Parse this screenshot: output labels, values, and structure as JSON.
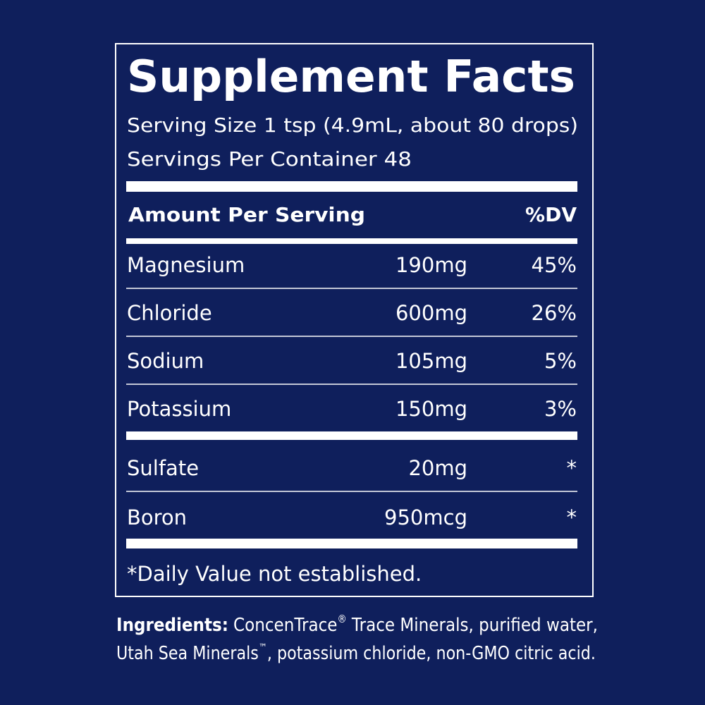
{
  "panel": {
    "title": "Supplement Facts",
    "serving_size": "Serving Size 1 tsp (4.9mL, about 80 drops)",
    "servings_per_container": "Servings Per Container 48",
    "header": {
      "amount": "Amount Per Serving",
      "dv": "%DV"
    },
    "rows": [
      [
        "Magnesium",
        "190mg",
        "45%"
      ],
      [
        "Chloride",
        "600mg",
        "26%"
      ],
      [
        "Sodium",
        "105mg",
        "5%"
      ],
      [
        "Potassium",
        "150mg",
        "3%"
      ]
    ],
    "rows_secondary": [
      [
        "Sulfate",
        "20mg",
        "*"
      ],
      [
        "Boron",
        "950mcg",
        "*"
      ]
    ],
    "footnote": "*Daily Value not established."
  },
  "ingredients": {
    "label": "Ingredients:",
    "line1": [
      "ConcenTrace",
      "®",
      "Trace Minerals, purified water,"
    ],
    "line2": [
      "Utah Sea Minerals",
      "™",
      ", potassium chloride, non-GMO citric acid."
    ]
  }
}
